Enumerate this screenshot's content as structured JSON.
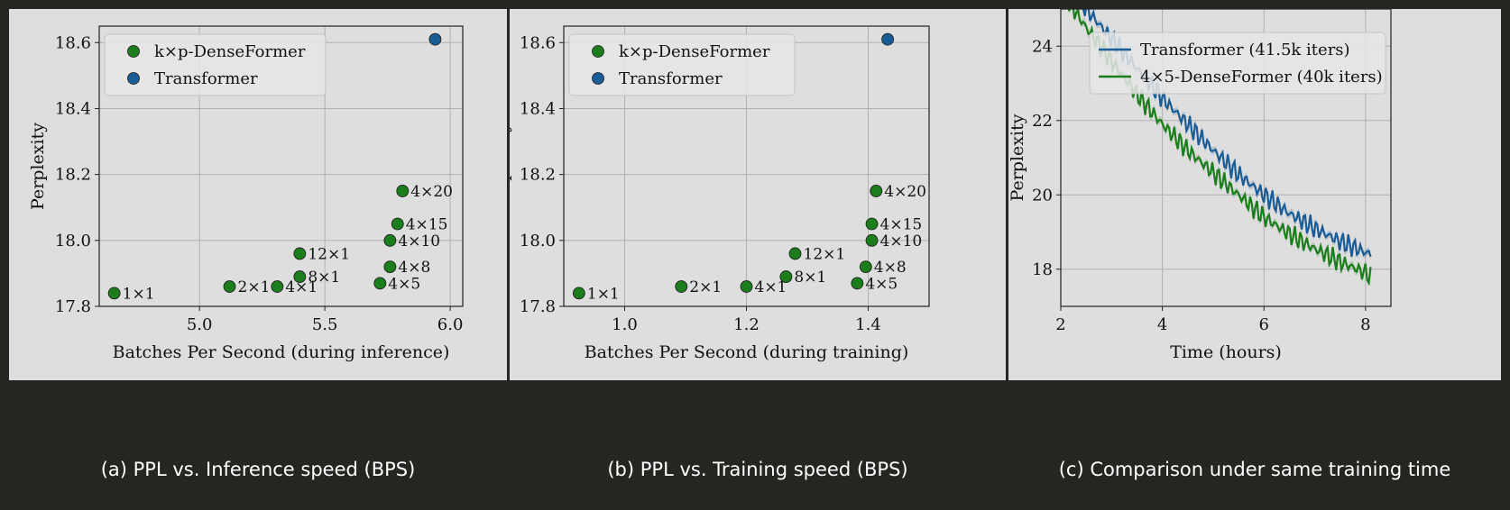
{
  "captions": {
    "a": "(a) PPL vs. Inference speed (BPS)",
    "b": "(b) PPL vs. Training speed (BPS)",
    "c": "(c) Comparison under same training time"
  },
  "colors": {
    "green": "#1c7d1c",
    "blue": "#1a5c96",
    "panel_bg": "#dedede",
    "page_bg": "#272522"
  },
  "chart_data": [
    {
      "type": "scatter",
      "title": "",
      "xlabel": "Batches Per Second (during inference)",
      "ylabel": "Perplexity",
      "xlim": [
        4.6,
        6.05
      ],
      "ylim": [
        17.8,
        18.65
      ],
      "xticks": [
        5.0,
        5.5,
        6.0
      ],
      "yticks": [
        17.8,
        18.0,
        18.2,
        18.4,
        18.6
      ],
      "grid": true,
      "legend_position": "top-left",
      "series": [
        {
          "name": "k×p-DenseFormer",
          "color": "#1c7d1c",
          "points": [
            {
              "x": 4.66,
              "y": 17.84,
              "label": "1×1"
            },
            {
              "x": 5.12,
              "y": 17.86,
              "label": "2×1"
            },
            {
              "x": 5.31,
              "y": 17.86,
              "label": "4×1"
            },
            {
              "x": 5.4,
              "y": 17.89,
              "label": "8×1"
            },
            {
              "x": 5.4,
              "y": 17.96,
              "label": "12×1"
            },
            {
              "x": 5.72,
              "y": 17.87,
              "label": "4×5"
            },
            {
              "x": 5.76,
              "y": 17.92,
              "label": "4×8"
            },
            {
              "x": 5.76,
              "y": 18.0,
              "label": "4×10"
            },
            {
              "x": 5.79,
              "y": 18.05,
              "label": "4×15"
            },
            {
              "x": 5.81,
              "y": 18.15,
              "label": "4×20"
            }
          ]
        },
        {
          "name": "Transformer",
          "color": "#1a5c96",
          "points": [
            {
              "x": 5.94,
              "y": 18.61
            }
          ]
        }
      ]
    },
    {
      "type": "scatter",
      "title": "",
      "xlabel": "Batches Per Second (during training)",
      "ylabel": "Perplexity",
      "xlim": [
        0.9,
        1.5
      ],
      "ylim": [
        17.8,
        18.65
      ],
      "xticks": [
        1.0,
        1.2,
        1.4
      ],
      "yticks": [
        17.8,
        18.0,
        18.2,
        18.4,
        18.6
      ],
      "grid": true,
      "legend_position": "top-left",
      "series": [
        {
          "name": "k×p-DenseFormer",
          "color": "#1c7d1c",
          "points": [
            {
              "x": 0.925,
              "y": 17.84,
              "label": "1×1"
            },
            {
              "x": 1.093,
              "y": 17.86,
              "label": "2×1"
            },
            {
              "x": 1.2,
              "y": 17.86,
              "label": "4×1"
            },
            {
              "x": 1.265,
              "y": 17.89,
              "label": "8×1"
            },
            {
              "x": 1.28,
              "y": 17.96,
              "label": "12×1"
            },
            {
              "x": 1.382,
              "y": 17.87,
              "label": "4×5"
            },
            {
              "x": 1.396,
              "y": 17.92,
              "label": "4×8"
            },
            {
              "x": 1.406,
              "y": 18.0,
              "label": "4×10"
            },
            {
              "x": 1.406,
              "y": 18.05,
              "label": "4×15"
            },
            {
              "x": 1.413,
              "y": 18.15,
              "label": "4×20"
            }
          ]
        },
        {
          "name": "Transformer",
          "color": "#1a5c96",
          "points": [
            {
              "x": 1.432,
              "y": 18.61
            }
          ]
        }
      ]
    },
    {
      "type": "line",
      "title": "",
      "xlabel": "Time (hours)",
      "ylabel": "Perplexity",
      "xlim": [
        2,
        8.5
      ],
      "ylim": [
        17,
        25
      ],
      "xticks": [
        2,
        4,
        6,
        8
      ],
      "yticks": [
        18,
        20,
        22,
        24
      ],
      "grid": true,
      "legend_position": "top-right",
      "series": [
        {
          "name": "Transformer (41.5k iters)",
          "color": "#1a5c96",
          "x": [
            2.0,
            2.5,
            3.0,
            3.5,
            4.0,
            4.5,
            5.0,
            5.5,
            6.0,
            6.5,
            7.0,
            7.5,
            8.0,
            8.1
          ],
          "y": [
            25.9,
            25.0,
            24.2,
            23.4,
            22.6,
            21.9,
            21.2,
            20.55,
            20.0,
            19.5,
            19.1,
            18.75,
            18.45,
            18.4
          ]
        },
        {
          "name": "4×5-DenseFormer (40k iters)",
          "color": "#1c7d1c",
          "x": [
            2.0,
            2.5,
            3.0,
            3.5,
            4.0,
            4.5,
            5.0,
            5.5,
            6.0,
            6.5,
            7.0,
            7.5,
            8.0,
            8.1
          ],
          "y": [
            25.5,
            24.5,
            23.6,
            22.7,
            21.9,
            21.2,
            20.6,
            20.0,
            19.4,
            18.95,
            18.55,
            18.2,
            17.9,
            17.8
          ]
        }
      ]
    }
  ]
}
